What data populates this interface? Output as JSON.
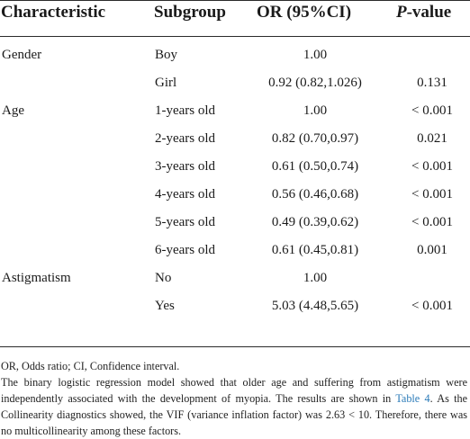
{
  "table": {
    "headers": {
      "characteristic": "Characteristic",
      "subgroup": "Subgroup",
      "or": "OR (95%CI)",
      "p_italic": "P",
      "p_rest": "-value"
    },
    "rows": [
      {
        "characteristic": "Gender",
        "subgroup": "Boy",
        "or": "1.00",
        "p": ""
      },
      {
        "characteristic": "",
        "subgroup": "Girl",
        "or": "0.92 (0.82,1.026)",
        "p": "0.131"
      },
      {
        "characteristic": "Age",
        "subgroup": "1-years old",
        "or": "1.00",
        "p": "< 0.001"
      },
      {
        "characteristic": "",
        "subgroup": "2-years old",
        "or": "0.82 (0.70,0.97)",
        "p": "0.021"
      },
      {
        "characteristic": "",
        "subgroup": "3-years old",
        "or": "0.61 (0.50,0.74)",
        "p": "< 0.001"
      },
      {
        "characteristic": "",
        "subgroup": "4-years old",
        "or": "0.56 (0.46,0.68)",
        "p": "< 0.001"
      },
      {
        "characteristic": "",
        "subgroup": "5-years old",
        "or": "0.49 (0.39,0.62)",
        "p": "< 0.001"
      },
      {
        "characteristic": "",
        "subgroup": "6-years old",
        "or": "0.61 (0.45,0.81)",
        "p": "0.001"
      },
      {
        "characteristic": "Astigmatism",
        "subgroup": "No",
        "or": "1.00",
        "p": ""
      },
      {
        "characteristic": "",
        "subgroup": "Yes",
        "or": "5.03 (4.48,5.65)",
        "p": "< 0.001"
      }
    ]
  },
  "footnote": {
    "abbreviations": "OR, Odds ratio; CI, Confidence interval.",
    "para_before_link": "The binary logistic regression model showed that older age and suffering from astigmatism were independently associated with the development of myopia. The results are shown in ",
    "link_text": "Table 4",
    "para_after_link": ". As the Collinearity diagnostics showed, the VIF (variance inflation factor) was 2.63 < 10. Therefore, there was no multicollinearity among these factors."
  },
  "colors": {
    "text": "#1a1a1a",
    "rule": "#2b2b2b",
    "link": "#2a7ab8"
  }
}
